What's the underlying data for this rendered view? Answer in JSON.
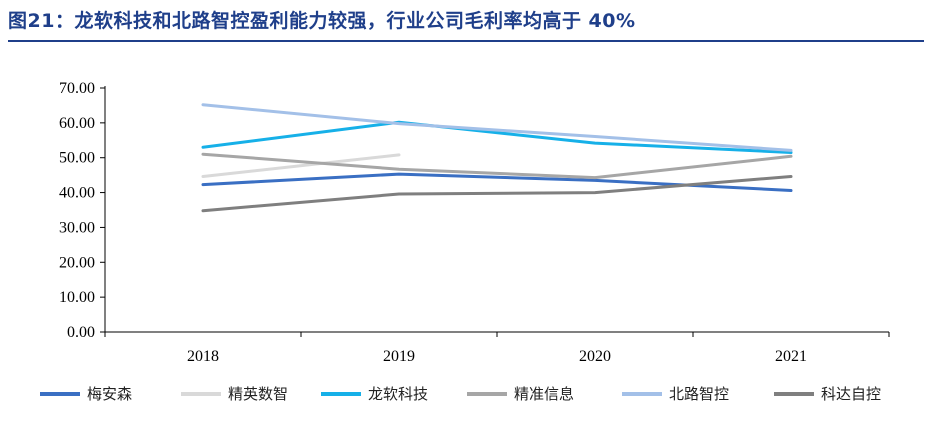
{
  "title": "图21：龙软科技和北路智控盈利能力较强，行业公司毛利率均高于 40%",
  "chart_data": {
    "type": "line",
    "categories": [
      "2018",
      "2019",
      "2020",
      "2021"
    ],
    "ylim": [
      0,
      70
    ],
    "yticks": [
      "0.00",
      "10.00",
      "20.00",
      "30.00",
      "40.00",
      "50.00",
      "60.00",
      "70.00"
    ],
    "grid": false,
    "legend_position": "bottom",
    "series": [
      {
        "name": "梅安森",
        "color": "#3a6fc3",
        "values": [
          42.3,
          45.3,
          43.5,
          40.6
        ]
      },
      {
        "name": "精英数智",
        "color": "#d9d9d9",
        "values": [
          44.6,
          50.8,
          null,
          null
        ]
      },
      {
        "name": "龙软科技",
        "color": "#16b0e8",
        "values": [
          53.0,
          60.2,
          54.2,
          51.5
        ]
      },
      {
        "name": "精准信息",
        "color": "#a6a6a6",
        "values": [
          51.0,
          46.7,
          44.3,
          50.4
        ]
      },
      {
        "name": "北路智控",
        "color": "#a3c0e8",
        "values": [
          65.2,
          59.8,
          56.1,
          52.1
        ]
      },
      {
        "name": "科达自控",
        "color": "#7f7f7f",
        "values": [
          34.8,
          39.6,
          40.0,
          44.6
        ]
      }
    ]
  }
}
